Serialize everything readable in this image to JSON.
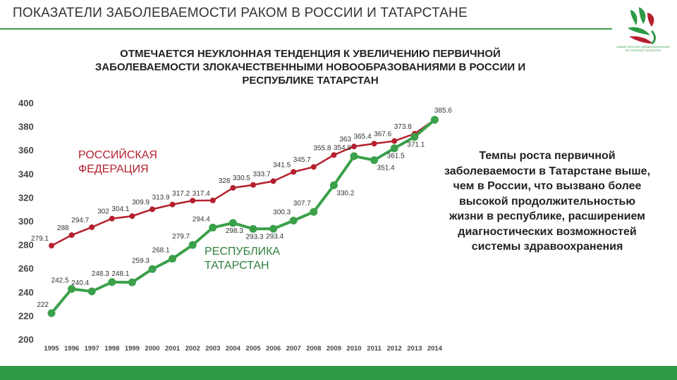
{
  "header": {
    "title": "ПОКАЗАТЕЛИ ЗАБОЛЕВАЕМОСТИ РАКОМ В РОССИИ И ТАТАРСТАНЕ",
    "logo_text": "МИНИСТЕРСТВО ЗДРАВООХРАНЕНИЯ РЕСПУБЛИКИ ТАТАРСТАН"
  },
  "subtitle_lines": [
    "ОТМЕЧАЕТСЯ НЕУКЛОННАЯ ТЕНДЕНЦИЯ К УВЕЛИЧЕНИЮ ПЕРВИЧНОЙ",
    "ЗАБОЛЕВАЕМОСТИ ЗЛОКАЧЕСТВЕННЫМИ НОВООБРАЗОВАНИЯМИ В РОССИИ И",
    "РЕСПУБЛИКЕ ТАТАРСТАН"
  ],
  "side_text": "Темпы роста первичной заболеваемости в Татарстане выше, чем в России, что вызвано более высокой продолжительностью жизни в республике, расширением диагностических возможностей системы здравоохранения",
  "colors": {
    "russia": "#b5202e",
    "tatarstan": "#3aa04a",
    "accent": "#2e9a45"
  },
  "chart_data": {
    "type": "line",
    "title": "",
    "xlabel": "",
    "ylabel": "",
    "ylim": [
      200,
      400
    ],
    "yticks": [
      400,
      380,
      360,
      340,
      320,
      300,
      280,
      260,
      240,
      220,
      200
    ],
    "grid": false,
    "categories": [
      "1995",
      "1996",
      "1997",
      "1998",
      "1999",
      "2000",
      "2001",
      "2002",
      "2003",
      "2004",
      "2005",
      "2006",
      "2007",
      "2008",
      "2009",
      "2010",
      "2011",
      "2012",
      "2013",
      "2014"
    ],
    "series": [
      {
        "name": "РОССИЙСКАЯ ФЕДЕРАЦИЯ",
        "label_lines": [
          "РОССИЙСКАЯ",
          "ФЕДЕРАЦИЯ"
        ],
        "values": [
          279.1,
          288,
          294.7,
          302,
          304.1,
          309.9,
          313.9,
          317.2,
          317.4,
          328,
          330.5,
          333.7,
          341.5,
          345.7,
          355.8,
          363,
          365.4,
          367.6,
          373.8,
          385.6
        ],
        "labels": [
          "279.1",
          "288",
          "294.7",
          "302",
          "304.1",
          "309.9",
          "313.9",
          "317.2",
          "317.4",
          "328",
          "330.5",
          "333.7",
          "341.5",
          "345.7",
          "355.8",
          "363",
          "365.4",
          "367.6",
          "373.8",
          "385.6"
        ]
      },
      {
        "name": "РЕСПУБЛИКА ТАТАРСТАН",
        "label_lines": [
          "РЕСПУБЛИКА",
          "ТАТАРСТАН"
        ],
        "values": [
          222,
          242.5,
          240.4,
          248.3,
          248.1,
          259.3,
          268.1,
          279.7,
          294.4,
          298.3,
          293.3,
          293.4,
          300.3,
          307.7,
          330.2,
          354.8,
          351.4,
          361.5,
          371.1,
          385.6
        ],
        "labels": [
          "222",
          "242.5",
          "240.4",
          "248.3",
          "248.1",
          "259.3",
          "268.1",
          "279.7",
          "294.4",
          "298.3",
          "293.3",
          "293.4",
          "300.3",
          "307.7",
          "330.2",
          "354.8",
          "351.4",
          "361.5",
          "371.1",
          null
        ]
      }
    ]
  }
}
